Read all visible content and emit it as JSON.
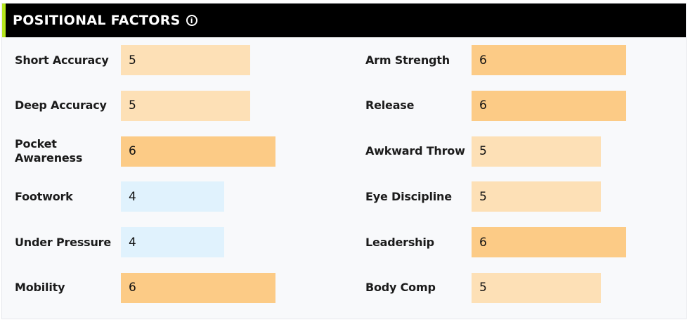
{
  "header": {
    "title": "POSITIONAL FACTORS",
    "info_icon": "info-circle-icon"
  },
  "colors": {
    "score4": "#e0f2fd",
    "score5": "#fde0b6",
    "score6": "#fccb86",
    "accent": "#b5e61d"
  },
  "factors_left": [
    {
      "label": "Short Accuracy",
      "value": "5"
    },
    {
      "label": "Deep Accuracy",
      "value": "5"
    },
    {
      "label": "Pocket Awareness",
      "value": "6"
    },
    {
      "label": "Footwork",
      "value": "4"
    },
    {
      "label": "Under Pressure",
      "value": "4"
    },
    {
      "label": "Mobility",
      "value": "6"
    }
  ],
  "factors_right": [
    {
      "label": "Arm Strength",
      "value": "6"
    },
    {
      "label": "Release",
      "value": "6"
    },
    {
      "label": "Awkward Throw",
      "value": "5"
    },
    {
      "label": "Eye Discipline",
      "value": "5"
    },
    {
      "label": "Leadership",
      "value": "6"
    },
    {
      "label": "Body Comp",
      "value": "5"
    }
  ]
}
